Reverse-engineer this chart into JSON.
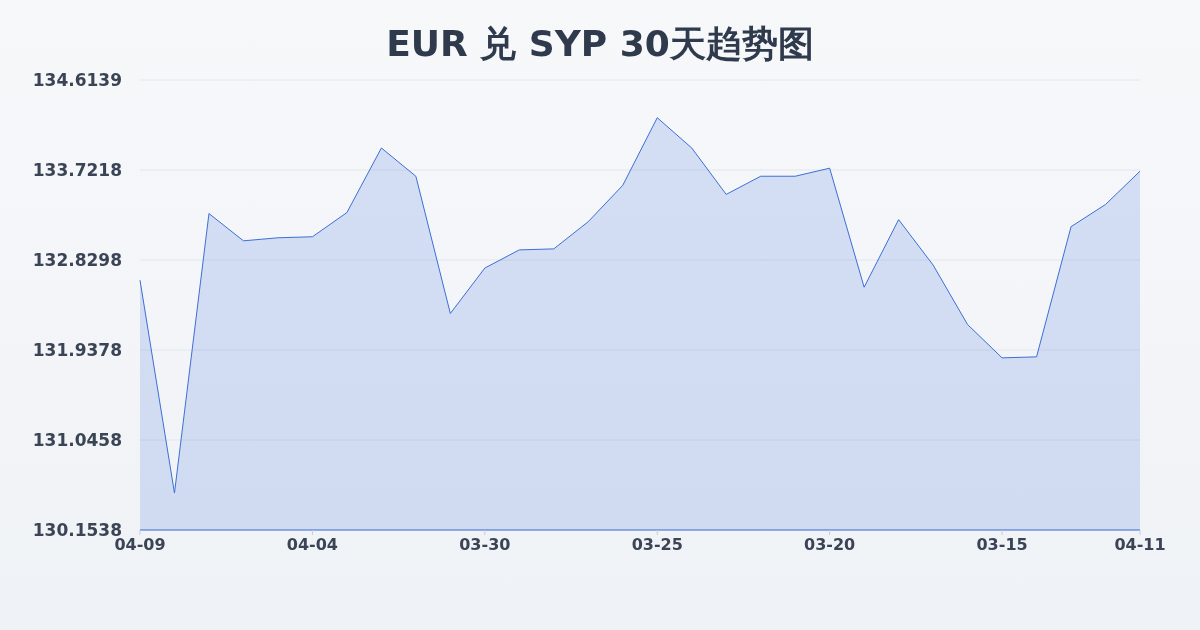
{
  "chart_data": {
    "type": "area",
    "title": "EUR 兑 SYP 30天趋势图",
    "categories": [
      "04-09",
      null,
      null,
      null,
      null,
      "04-04",
      null,
      null,
      null,
      null,
      "03-30",
      null,
      null,
      null,
      null,
      "03-25",
      null,
      null,
      null,
      null,
      "03-20",
      null,
      null,
      null,
      null,
      "03-15",
      null,
      null,
      null,
      "04-11"
    ],
    "values": [
      132.63,
      130.52,
      133.29,
      133.02,
      133.05,
      133.06,
      133.3,
      133.94,
      133.66,
      132.3,
      132.75,
      132.93,
      132.94,
      133.21,
      133.57,
      134.24,
      133.94,
      133.48,
      133.66,
      133.66,
      133.74,
      132.56,
      133.23,
      132.78,
      132.19,
      131.86,
      131.87,
      133.16,
      133.38,
      133.71
    ],
    "color": "#3d6fd6",
    "ylim": [
      130.1538,
      134.6139
    ],
    "yticks": [
      130.1538,
      131.0458,
      131.9378,
      132.8298,
      133.7218,
      134.6139
    ],
    "grid": "y"
  }
}
